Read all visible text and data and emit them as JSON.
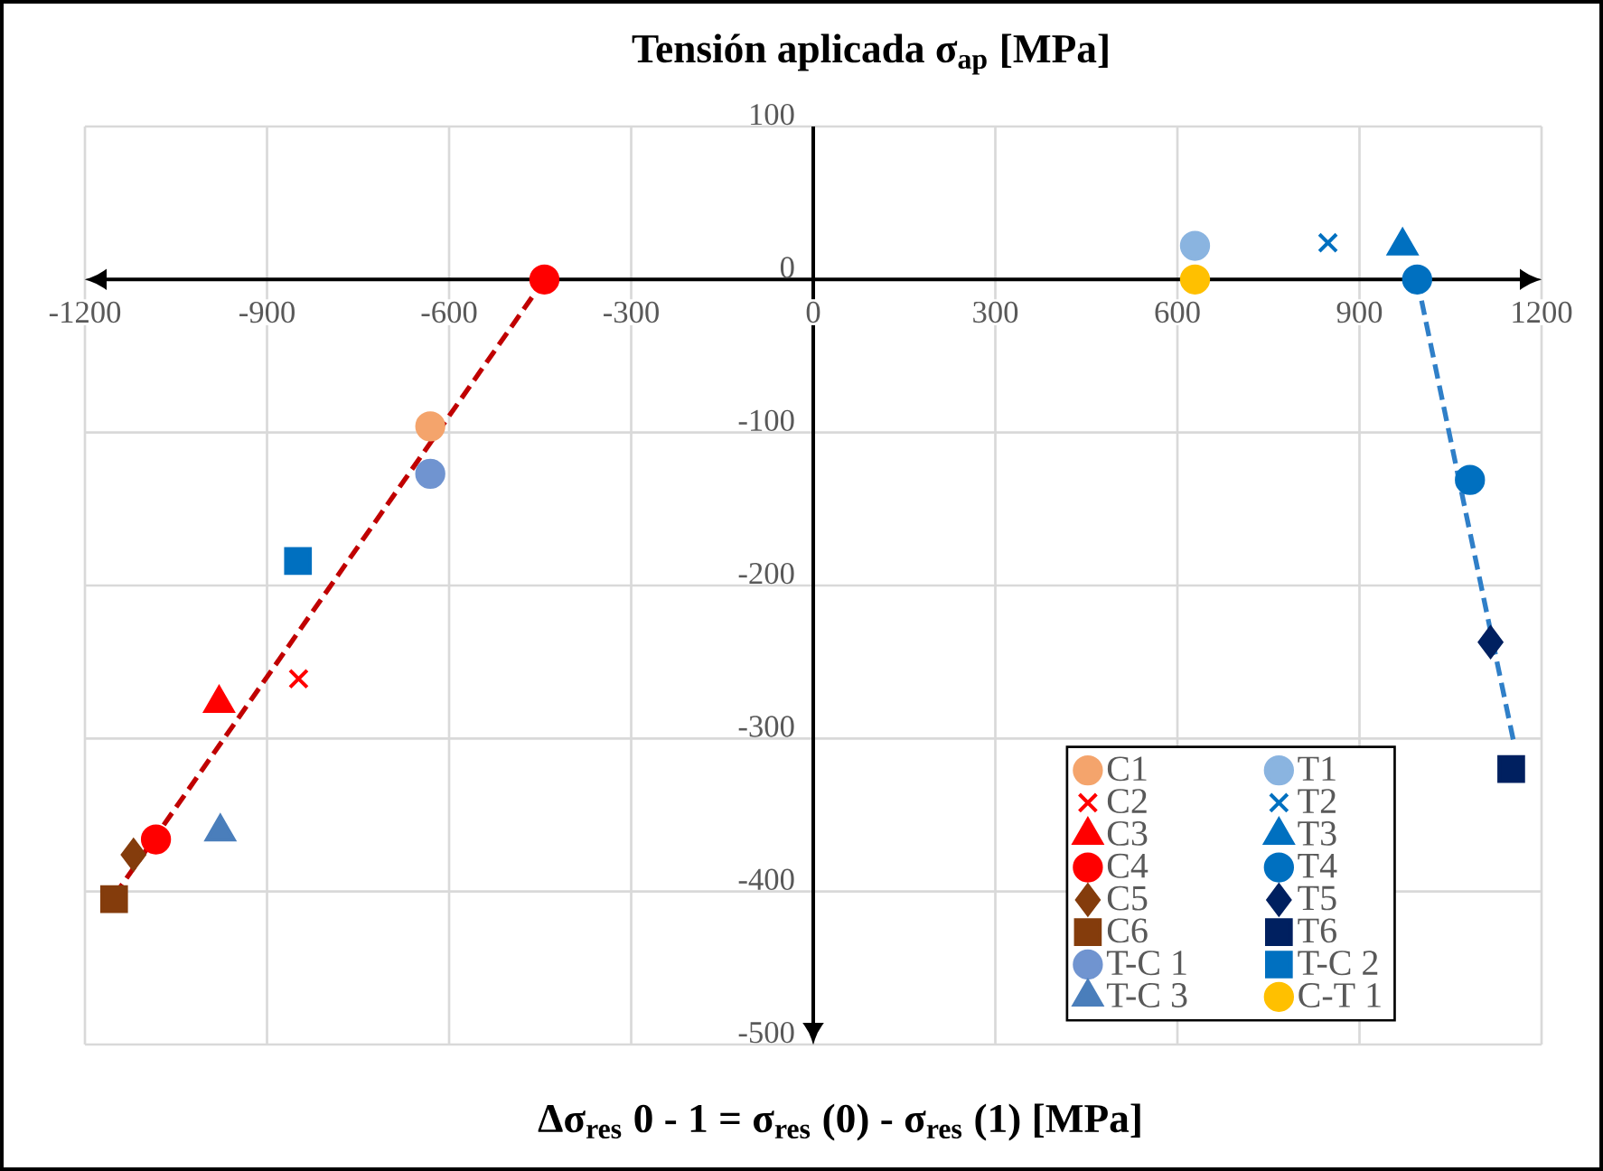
{
  "chart_data": {
    "type": "scatter",
    "ylabel": "Tensión aplicada σ$_{ap}$ [MPa]",
    "xlabel": "Δσ$_{res}$ 0 - 1 = σ$_{res}$ (0) - σ$_{res}$ (1)  [MPa]",
    "xlim": [
      -1200,
      1200
    ],
    "ylim": [
      -500,
      100
    ],
    "xticks": [
      -1200,
      -900,
      -600,
      -300,
      0,
      300,
      600,
      900,
      1200
    ],
    "yticks": [
      -500,
      -400,
      -300,
      -200,
      -100,
      0,
      100
    ],
    "grid": true,
    "legend": "bottom right",
    "series": [
      {
        "name": "C1",
        "x": [
          -631
        ],
        "values": [
          -96
        ],
        "color": "#f4a46c",
        "marker": "circle"
      },
      {
        "name": "T1",
        "x": [
          629
        ],
        "values": [
          22
        ],
        "color": "#8ab4e0",
        "marker": "circle"
      },
      {
        "name": "C2",
        "x": [
          -848
        ],
        "values": [
          -261
        ],
        "color": "#ff0000",
        "marker": "cross"
      },
      {
        "name": "T2",
        "x": [
          848
        ],
        "values": [
          24
        ],
        "color": "#0070c0",
        "marker": "cross"
      },
      {
        "name": "C3",
        "x": [
          -979
        ],
        "values": [
          -277
        ],
        "color": "#ff0000",
        "marker": "triangle"
      },
      {
        "name": "T3",
        "x": [
          971
        ],
        "values": [
          22
        ],
        "color": "#0070c0",
        "marker": "triangle"
      },
      {
        "name": "C4",
        "x": [
          -1083
        ],
        "values": [
          -366
        ],
        "color": "#ff0000",
        "marker": "circle"
      },
      {
        "name": "T4",
        "x": [
          1082
        ],
        "values": [
          -131
        ],
        "color": "#0070c0",
        "marker": "circle"
      },
      {
        "name": "C5",
        "x": [
          -1120
        ],
        "values": [
          -376
        ],
        "color": "#843c0c",
        "marker": "diamond"
      },
      {
        "name": "T5",
        "x": [
          1116
        ],
        "values": [
          -237
        ],
        "color": "#002060",
        "marker": "diamond"
      },
      {
        "name": "C6",
        "x": [
          -1152
        ],
        "values": [
          -405
        ],
        "color": "#843c0c",
        "marker": "square"
      },
      {
        "name": "T6",
        "x": [
          1150
        ],
        "values": [
          -320
        ],
        "color": "#002060",
        "marker": "square"
      },
      {
        "name": "T-C 1",
        "x": [
          -631
        ],
        "values": [
          -127
        ],
        "color": "#7094d0",
        "marker": "circle"
      },
      {
        "name": "T-C 2",
        "x": [
          -849
        ],
        "values": [
          -184
        ],
        "color": "#0070c0",
        "marker": "square"
      },
      {
        "name": "T-C 3",
        "x": [
          -977
        ],
        "values": [
          -361
        ],
        "color": "#4a7ebb",
        "marker": "triangle"
      },
      {
        "name": "C-T 1",
        "x": [
          629
        ],
        "values": [
          0
        ],
        "color": "#ffc000",
        "marker": "circle"
      },
      {
        "x": [
          -443
        ],
        "values": [
          0
        ],
        "color": "#ff0000",
        "marker": "circle"
      },
      {
        "x": [
          995
        ],
        "values": [
          0
        ],
        "color": "#0070c0",
        "marker": "circle"
      },
      {
        "type": "line",
        "x": [
          -1152,
          -443
        ],
        "values": [
          -403,
          0
        ],
        "color": "#c00000",
        "marker": "none",
        "line_style": "dashed"
      },
      {
        "type": "line",
        "x": [
          995,
          1154
        ],
        "values": [
          0,
          -302
        ],
        "color": "#2f7fc8",
        "marker": "none",
        "line_style": "dashed"
      }
    ]
  }
}
